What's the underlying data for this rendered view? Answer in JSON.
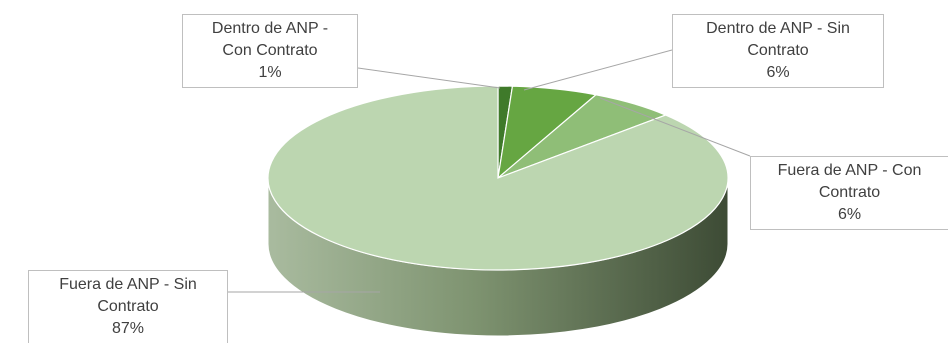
{
  "chart_data": {
    "type": "pie",
    "style": "3d-perspective",
    "title": "",
    "slices": [
      {
        "label": "Dentro de ANP - Con Contrato",
        "value": 1,
        "percent_label": "1%",
        "color": "#3f7a2a"
      },
      {
        "label": "Dentro de ANP - Sin Contrato",
        "value": 6,
        "percent_label": "6%",
        "color": "#66a642"
      },
      {
        "label": "Fuera de ANP - Con Contrato",
        "value": 6,
        "percent_label": "6%",
        "color": "#8fbe77"
      },
      {
        "label": "Fuera de ANP - Sin Contrato",
        "value": 87,
        "percent_label": "87%",
        "color": "#bcd6b0"
      }
    ],
    "callouts": [
      {
        "line1": "Dentro de ANP -",
        "line2": "Con Contrato",
        "pct": "1%"
      },
      {
        "line1": "Dentro de ANP - Sin",
        "line2": "Contrato",
        "pct": "6%"
      },
      {
        "line1": "Fuera de ANP - Con",
        "line2": "Contrato",
        "pct": "6%"
      },
      {
        "line1": "Fuera de ANP - Sin",
        "line2": "Contrato",
        "pct": "87%"
      }
    ],
    "legend": "none",
    "label_style": "callout boxes with leader lines"
  }
}
